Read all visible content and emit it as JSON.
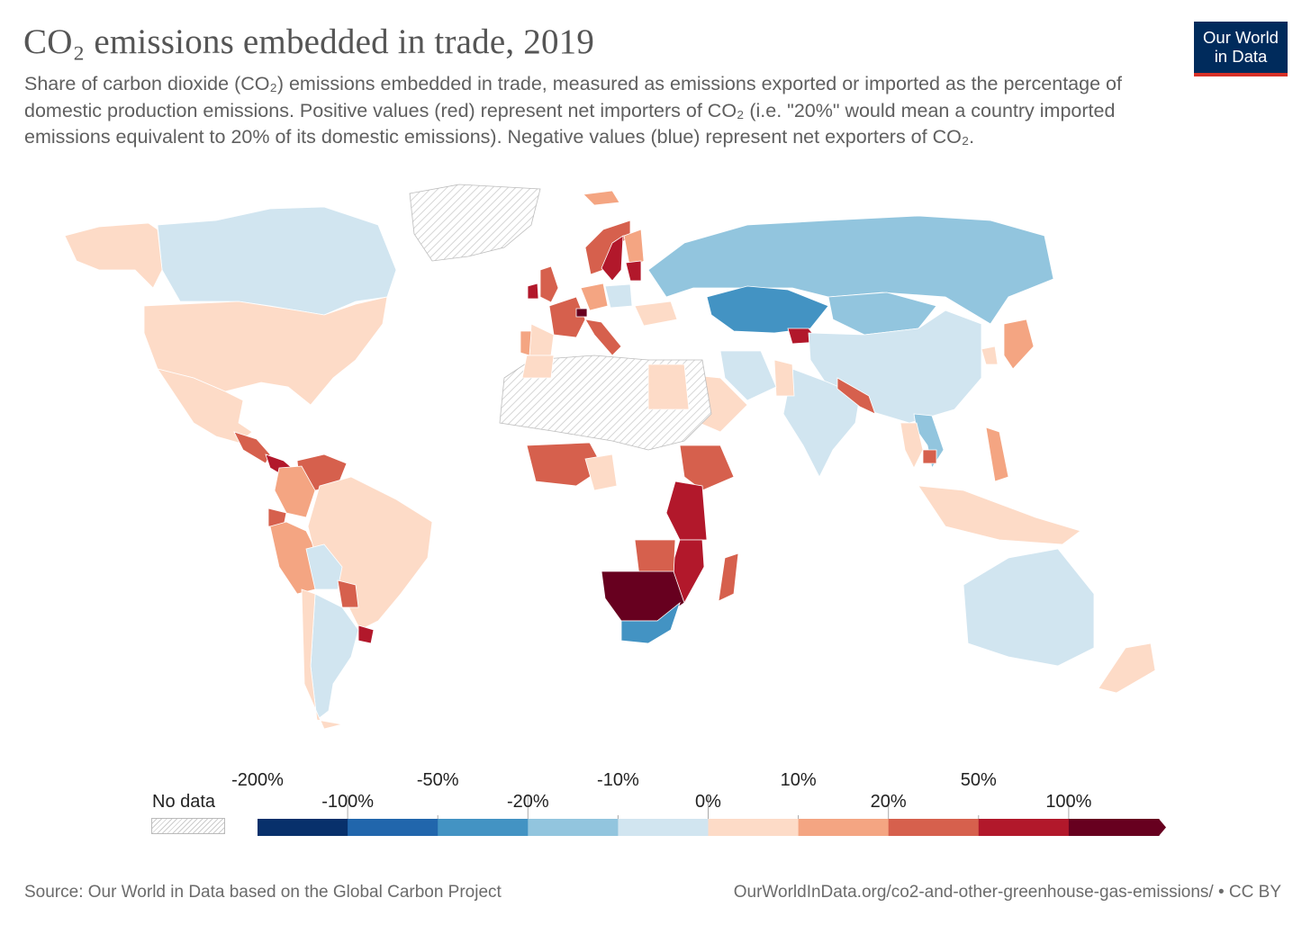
{
  "header": {
    "title": "CO₂ emissions embedded in trade, 2019",
    "subtitle": "Share of carbon dioxide (CO₂) emissions embedded in trade, measured as emissions exported or imported as the percentage of domestic production emissions. Positive values (red) represent net importers of CO₂ (i.e. \"20%\" would mean a country imported emissions equivalent to 20% of its domestic emissions). Negative values (blue) represent net exporters of CO₂."
  },
  "logo": {
    "line1": "Our World",
    "line2": "in Data",
    "bg": "#002b5c",
    "accent": "#d73027"
  },
  "legend": {
    "nodata_label": "No data",
    "upper_labels": [
      "-200%",
      "-50%",
      "-10%",
      "10%",
      "50%"
    ],
    "lower_labels": [
      "-100%",
      "-20%",
      "0%",
      "20%",
      "100%"
    ],
    "colors": [
      "#08306b",
      "#2166ac",
      "#4393c3",
      "#92c5de",
      "#d1e5f0",
      "#fddbc7",
      "#f4a582",
      "#d6604d",
      "#b2182b",
      "#67001f"
    ]
  },
  "footer": {
    "source": "Source: Our World in Data based on the Global Carbon Project",
    "url": "OurWorldInData.org/co2-and-other-greenhouse-gas-emissions/ • CC BY"
  },
  "map_data": {
    "type": "choropleth",
    "year": 2019,
    "regions": [
      {
        "name": "Canada",
        "bin": 4
      },
      {
        "name": "Alaska",
        "bin": 5
      },
      {
        "name": "United States",
        "bin": 5
      },
      {
        "name": "Mexico",
        "bin": 5
      },
      {
        "name": "Central America",
        "bin": 7
      },
      {
        "name": "Panama / Costa Rica",
        "bin": 8
      },
      {
        "name": "Venezuela",
        "bin": 7
      },
      {
        "name": "Colombia",
        "bin": 6
      },
      {
        "name": "Ecuador",
        "bin": 7
      },
      {
        "name": "Peru",
        "bin": 6
      },
      {
        "name": "Brazil",
        "bin": 5
      },
      {
        "name": "Bolivia",
        "bin": 4
      },
      {
        "name": "Paraguay",
        "bin": 7
      },
      {
        "name": "Uruguay",
        "bin": 8
      },
      {
        "name": "Argentina",
        "bin": 4
      },
      {
        "name": "Chile",
        "bin": 5
      },
      {
        "name": "Greenland",
        "bin": -1
      },
      {
        "name": "Iceland",
        "bin": 6
      },
      {
        "name": "Norway",
        "bin": 7
      },
      {
        "name": "Sweden",
        "bin": 8
      },
      {
        "name": "Finland",
        "bin": 6
      },
      {
        "name": "United Kingdom",
        "bin": 7
      },
      {
        "name": "Ireland",
        "bin": 8
      },
      {
        "name": "France",
        "bin": 7
      },
      {
        "name": "Switzerland",
        "bin": 9
      },
      {
        "name": "Germany",
        "bin": 6
      },
      {
        "name": "Poland",
        "bin": 4
      },
      {
        "name": "Italy",
        "bin": 7
      },
      {
        "name": "Spain",
        "bin": 5
      },
      {
        "name": "Portugal",
        "bin": 6
      },
      {
        "name": "Baltics",
        "bin": 8
      },
      {
        "name": "Ukraine",
        "bin": 5
      },
      {
        "name": "Russia",
        "bin": 3
      },
      {
        "name": "Kazakhstan",
        "bin": 2
      },
      {
        "name": "Kyrgyzstan",
        "bin": 8
      },
      {
        "name": "Mongolia",
        "bin": 3
      },
      {
        "name": "China",
        "bin": 4
      },
      {
        "name": "India",
        "bin": 4
      },
      {
        "name": "Nepal / Bangladesh",
        "bin": 7
      },
      {
        "name": "Pakistan",
        "bin": 5
      },
      {
        "name": "Iran",
        "bin": 4
      },
      {
        "name": "Saudi Arabia",
        "bin": 5
      },
      {
        "name": "Japan",
        "bin": 6
      },
      {
        "name": "Korea",
        "bin": 5
      },
      {
        "name": "Vietnam",
        "bin": 3
      },
      {
        "name": "Cambodia",
        "bin": 7
      },
      {
        "name": "Thailand",
        "bin": 5
      },
      {
        "name": "Philippines",
        "bin": 6
      },
      {
        "name": "Malaysia / Indonesia",
        "bin": 5
      },
      {
        "name": "Australia",
        "bin": 4
      },
      {
        "name": "New Zealand",
        "bin": 5
      },
      {
        "name": "North Africa",
        "bin": -1
      },
      {
        "name": "Egypt",
        "bin": 5
      },
      {
        "name": "Morocco",
        "bin": 5
      },
      {
        "name": "West Africa",
        "bin": 7
      },
      {
        "name": "Cameroon",
        "bin": 5
      },
      {
        "name": "Ethiopia",
        "bin": 7
      },
      {
        "name": "Kenya / Tanzania",
        "bin": 8
      },
      {
        "name": "Mozambique",
        "bin": 8
      },
      {
        "name": "Madagascar",
        "bin": 7
      },
      {
        "name": "Zambia",
        "bin": 7
      },
      {
        "name": "Namibia / Botswana / Zimbabwe",
        "bin": 9
      },
      {
        "name": "South Africa",
        "bin": 2
      }
    ]
  }
}
